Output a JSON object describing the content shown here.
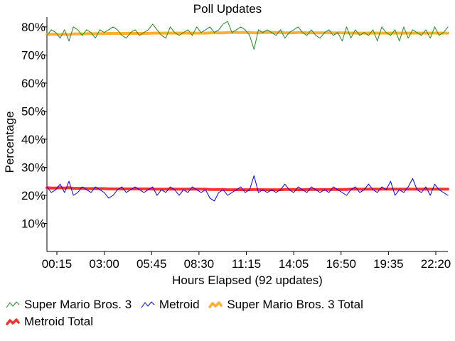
{
  "chart_data": {
    "type": "line",
    "title": "Poll Updates",
    "xlabel": "Hours Elapsed (92 updates)",
    "ylabel": "Percentage",
    "ylim": [
      0,
      82
    ],
    "y_ticks": [
      10,
      20,
      30,
      40,
      50,
      60,
      70,
      80
    ],
    "y_tick_labels": [
      "10%",
      "20%",
      "30%",
      "40%",
      "50%",
      "60%",
      "70%",
      "80%"
    ],
    "x_tick_labels": [
      "00:15",
      "03:00",
      "05:45",
      "08:30",
      "11:15",
      "14:05",
      "16:50",
      "19:35",
      "22:20"
    ],
    "legend_position": "bottom",
    "grid": false,
    "series": [
      {
        "name": "Super Mario Bros. 3",
        "color": "#228b22",
        "width": 1,
        "values": [
          77,
          79,
          78,
          76,
          79,
          75,
          80,
          79,
          77,
          79,
          78,
          76,
          79,
          78,
          79,
          80,
          79,
          77,
          76,
          78,
          79,
          77,
          78,
          79,
          81,
          79,
          77,
          76,
          80,
          78,
          77,
          78,
          79,
          77,
          80,
          78,
          79,
          80,
          78,
          79,
          81,
          82,
          78,
          79,
          80,
          79,
          77,
          72,
          79,
          78,
          79,
          78,
          77,
          79,
          76,
          78,
          79,
          80,
          78,
          77,
          79,
          77,
          76,
          78,
          79,
          77,
          78,
          75,
          80,
          76,
          79,
          77,
          78,
          77,
          79,
          75,
          80,
          78,
          77,
          79,
          75,
          80,
          76,
          79,
          78,
          77,
          79,
          76,
          80,
          77,
          78,
          80
        ]
      },
      {
        "name": "Metroid",
        "color": "#0000ee",
        "width": 1,
        "values": [
          23,
          21,
          22,
          24,
          21,
          25,
          20,
          21,
          23,
          22,
          21,
          23,
          22,
          21,
          19,
          20,
          22,
          23,
          21,
          22,
          23,
          22,
          21,
          22,
          23,
          20,
          22,
          21,
          23,
          22,
          20,
          22,
          21,
          23,
          22,
          21,
          22,
          19,
          18,
          21,
          22,
          20,
          21,
          22,
          23,
          21,
          22,
          27,
          21,
          22,
          21,
          22,
          21,
          22,
          24,
          22,
          21,
          23,
          22,
          21,
          23,
          22,
          21,
          22,
          21,
          23,
          22,
          21,
          20,
          22,
          23,
          21,
          22,
          24,
          22,
          21,
          23,
          22,
          25,
          20,
          22,
          21,
          23,
          26,
          22,
          21,
          23,
          20,
          24,
          22,
          21,
          20
        ]
      },
      {
        "name": "Super Mario Bros. 3 Total",
        "color": "#ffb030",
        "width": 4,
        "values": [
          77.3,
          77.4,
          77.4,
          77.3,
          77.4,
          77.3,
          77.5,
          77.5,
          77.5,
          77.6,
          77.6,
          77.6,
          77.6,
          77.6,
          77.7,
          77.7,
          77.7,
          77.7,
          77.7,
          77.7,
          77.7,
          77.7,
          77.7,
          77.7,
          77.8,
          77.8,
          77.8,
          77.8,
          77.8,
          77.8,
          77.8,
          77.8,
          77.8,
          77.8,
          77.8,
          77.8,
          77.8,
          77.9,
          77.9,
          77.9,
          77.9,
          78.0,
          78.0,
          78.0,
          78.0,
          78.0,
          78.0,
          77.9,
          77.9,
          78.0,
          78.0,
          78.0,
          78.0,
          78.0,
          77.9,
          77.9,
          77.9,
          78.0,
          78.0,
          77.9,
          77.9,
          77.9,
          77.9,
          77.9,
          77.9,
          77.9,
          77.9,
          77.9,
          77.9,
          77.8,
          77.8,
          77.8,
          77.8,
          77.8,
          77.8,
          77.8,
          77.8,
          77.8,
          77.8,
          77.8,
          77.8,
          77.8,
          77.8,
          77.8,
          77.8,
          77.8,
          77.8,
          77.8,
          77.8,
          77.8,
          77.8,
          77.8
        ]
      },
      {
        "name": "Metroid Total",
        "color": "#ff3030",
        "width": 4,
        "values": [
          22.7,
          22.6,
          22.6,
          22.7,
          22.6,
          22.7,
          22.5,
          22.5,
          22.5,
          22.4,
          22.4,
          22.4,
          22.4,
          22.4,
          22.3,
          22.3,
          22.3,
          22.3,
          22.3,
          22.3,
          22.3,
          22.3,
          22.3,
          22.3,
          22.2,
          22.2,
          22.2,
          22.2,
          22.2,
          22.2,
          22.2,
          22.2,
          22.2,
          22.2,
          22.2,
          22.2,
          22.2,
          22.1,
          22.1,
          22.1,
          22.1,
          22.0,
          22.0,
          22.0,
          22.0,
          22.0,
          22.0,
          22.1,
          22.1,
          22.0,
          22.0,
          22.0,
          22.0,
          22.0,
          22.1,
          22.1,
          22.1,
          22.0,
          22.0,
          22.1,
          22.1,
          22.1,
          22.1,
          22.1,
          22.1,
          22.1,
          22.1,
          22.1,
          22.1,
          22.2,
          22.2,
          22.2,
          22.2,
          22.2,
          22.2,
          22.2,
          22.2,
          22.2,
          22.2,
          22.2,
          22.2,
          22.2,
          22.2,
          22.2,
          22.2,
          22.2,
          22.2,
          22.2,
          22.2,
          22.2,
          22.2,
          22.2
        ]
      }
    ]
  }
}
